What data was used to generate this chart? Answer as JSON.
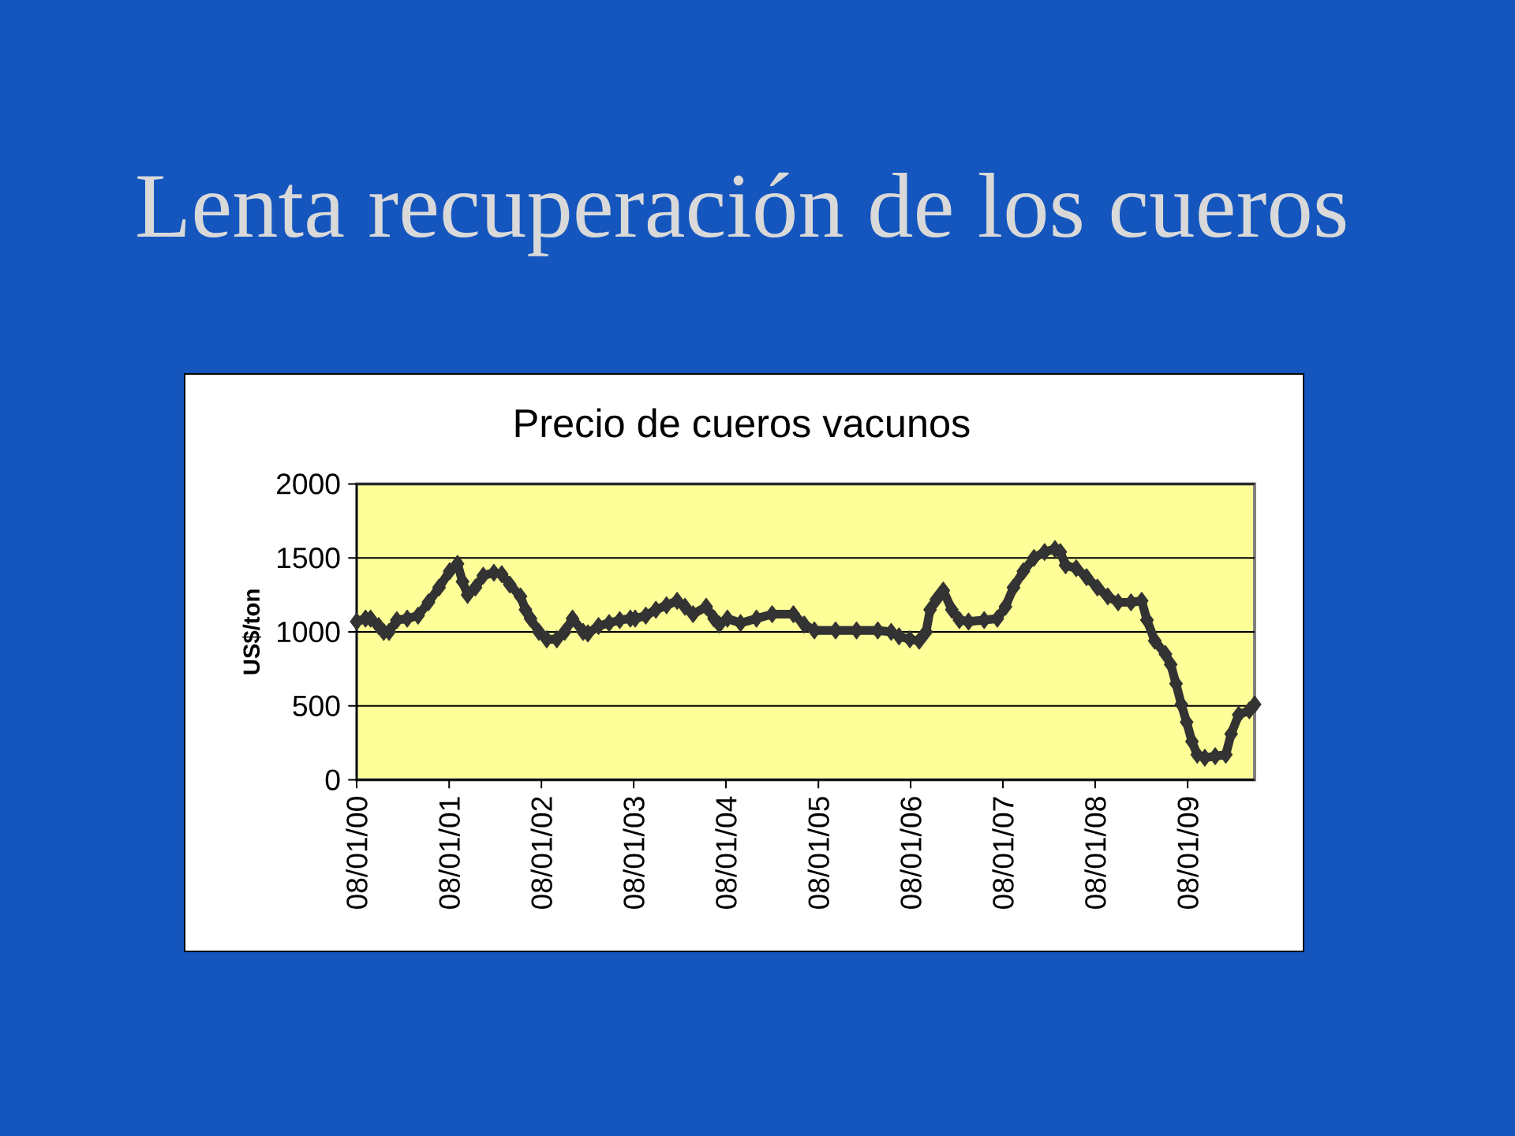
{
  "chart_data": {
    "type": "line",
    "title": "Lenta recuperación de los cueros",
    "subtitle": "Precio de cueros vacunos",
    "ylabel": "US$/ton",
    "x": [
      "2000-01-08",
      "2000-02-12",
      "2000-03-03",
      "2000-04-04",
      "2000-04-24",
      "2000-05-15",
      "2000-06-15",
      "2000-07-26",
      "2000-09-07",
      "2000-10-18",
      "2000-11-29",
      "2001-01-10",
      "2001-02-10",
      "2001-03-02",
      "2001-03-22",
      "2001-04-22",
      "2001-05-23",
      "2001-07-04",
      "2001-08-04",
      "2001-09-05",
      "2001-10-17",
      "2001-11-06",
      "2001-11-26",
      "2001-12-29",
      "2002-01-29",
      "2002-03-10",
      "2002-04-10",
      "2002-05-11",
      "2002-06-22",
      "2002-07-11",
      "2002-08-22",
      "2002-10-03",
      "2002-11-14",
      "2002-12-26",
      "2003-01-14",
      "2003-02-25",
      "2003-04-06",
      "2003-05-18",
      "2003-06-29",
      "2003-07-30",
      "2003-08-31",
      "2003-10-22",
      "2003-11-22",
      "2003-12-13",
      "2004-01-14",
      "2004-03-06",
      "2004-05-08",
      "2004-07-09",
      "2004-10-01",
      "2004-11-13",
      "2004-12-23",
      "2005-03-17",
      "2005-06-08",
      "2005-08-31",
      "2005-10-23",
      "2005-11-23",
      "2006-01-05",
      "2006-02-11",
      "2006-03-10",
      "2006-03-26",
      "2006-04-20",
      "2006-05-17",
      "2006-06-20",
      "2006-07-20",
      "2006-08-25",
      "2006-10-26",
      "2006-12-17",
      "2007-01-18",
      "2007-02-19",
      "2007-03-30",
      "2007-05-11",
      "2007-06-22",
      "2007-08-02",
      "2007-08-23",
      "2007-09-13",
      "2007-10-25",
      "2007-12-05",
      "2008-01-17",
      "2008-02-27",
      "2008-04-08",
      "2008-05-29",
      "2008-07-10",
      "2008-07-31",
      "2008-08-31",
      "2008-10-12",
      "2008-11-02",
      "2008-11-23",
      "2008-12-14",
      "2009-01-04",
      "2009-01-25",
      "2009-02-15",
      "2009-03-17",
      "2009-04-27",
      "2009-06-08",
      "2009-06-29",
      "2009-07-29",
      "2009-09-09",
      "2009-09-30"
    ],
    "values": [
      1070,
      1090,
      1090,
      1040,
      1000,
      1000,
      1080,
      1090,
      1110,
      1200,
      1300,
      1410,
      1460,
      1340,
      1250,
      1300,
      1380,
      1400,
      1390,
      1320,
      1240,
      1150,
      1090,
      1000,
      950,
      950,
      1000,
      1090,
      1000,
      990,
      1040,
      1060,
      1080,
      1090,
      1090,
      1110,
      1150,
      1180,
      1210,
      1170,
      1120,
      1170,
      1090,
      1050,
      1090,
      1060,
      1090,
      1120,
      1120,
      1050,
      1010,
      1010,
      1010,
      1010,
      1000,
      970,
      950,
      940,
      1000,
      1150,
      1220,
      1280,
      1150,
      1080,
      1070,
      1080,
      1090,
      1170,
      1300,
      1410,
      1500,
      1540,
      1560,
      1540,
      1450,
      1430,
      1370,
      1300,
      1240,
      1200,
      1200,
      1210,
      1080,
      940,
      850,
      780,
      650,
      510,
      390,
      260,
      170,
      150,
      160,
      170,
      310,
      440,
      470,
      510
    ],
    "color": "#333333",
    "marker": "diamond",
    "line_style": "solid",
    "xlim": [
      "2000-01-08",
      "2009-09-30"
    ],
    "xticks": [
      {
        "value": "2000-01-08",
        "label": "08/01/00"
      },
      {
        "value": "2001-01-08",
        "label": "08/01/01"
      },
      {
        "value": "2002-01-08",
        "label": "08/01/02"
      },
      {
        "value": "2003-01-08",
        "label": "08/01/03"
      },
      {
        "value": "2004-01-08",
        "label": "08/01/04"
      },
      {
        "value": "2005-01-08",
        "label": "08/01/05"
      },
      {
        "value": "2006-01-08",
        "label": "08/01/06"
      },
      {
        "value": "2007-01-08",
        "label": "08/01/07"
      },
      {
        "value": "2008-01-08",
        "label": "08/01/08"
      },
      {
        "value": "2009-01-08",
        "label": "08/01/09"
      }
    ],
    "ylim": [
      0,
      2000
    ],
    "yticks": [
      0,
      500,
      1000,
      1500,
      2000
    ],
    "grid": "y"
  }
}
